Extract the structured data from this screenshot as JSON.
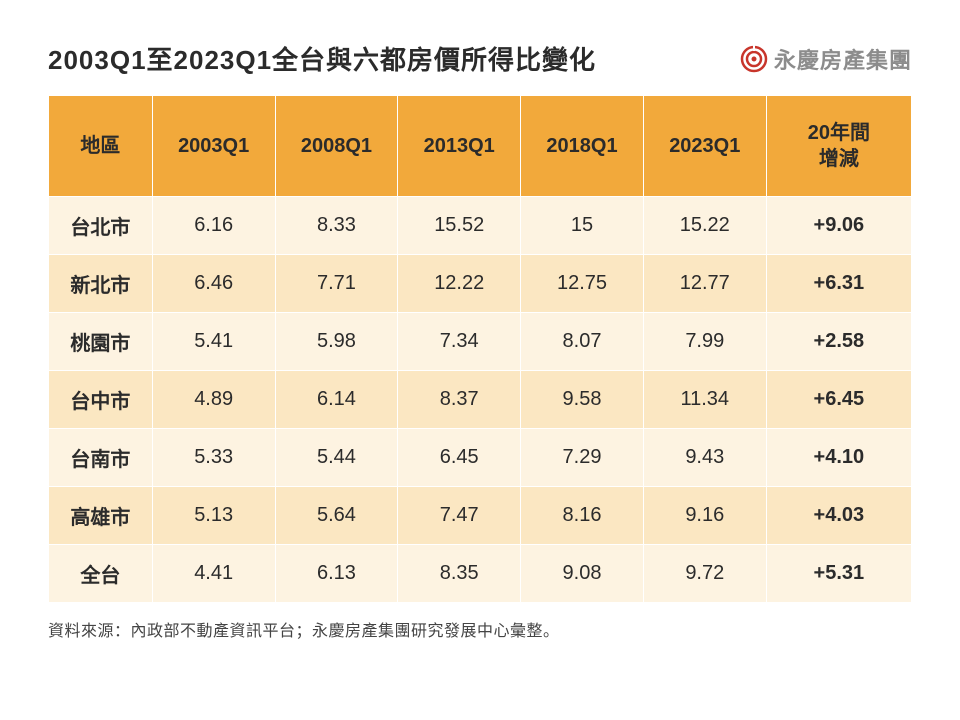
{
  "title": "2003Q1至2023Q1全台與六都房價所得比變化",
  "logo": {
    "text": "永慶房產集團",
    "icon_color": "#c8352b"
  },
  "table": {
    "type": "table",
    "header_bg": "#f2a93b",
    "row_even_bg": "#fdf3e1",
    "row_odd_bg": "#fbe7c2",
    "border_color": "#ffffff",
    "header_fontsize": 20,
    "cell_fontsize": 20,
    "columns": [
      "地區",
      "2003Q1",
      "2008Q1",
      "2013Q1",
      "2018Q1",
      "2023Q1",
      "20年間\n增減"
    ],
    "rows": [
      {
        "label": "台北市",
        "values": [
          "6.16",
          "8.33",
          "15.52",
          "15",
          "15.22"
        ],
        "change": "+9.06"
      },
      {
        "label": "新北市",
        "values": [
          "6.46",
          "7.71",
          "12.22",
          "12.75",
          "12.77"
        ],
        "change": "+6.31"
      },
      {
        "label": "桃園市",
        "values": [
          "5.41",
          "5.98",
          "7.34",
          "8.07",
          "7.99"
        ],
        "change": "+2.58"
      },
      {
        "label": "台中市",
        "values": [
          "4.89",
          "6.14",
          "8.37",
          "9.58",
          "11.34"
        ],
        "change": "+6.45"
      },
      {
        "label": "台南市",
        "values": [
          "5.33",
          "5.44",
          "6.45",
          "7.29",
          "9.43"
        ],
        "change": "+4.10"
      },
      {
        "label": "高雄市",
        "values": [
          "5.13",
          "5.64",
          "7.47",
          "8.16",
          "9.16"
        ],
        "change": "+4.03"
      },
      {
        "label": "全台",
        "values": [
          "4.41",
          "6.13",
          "8.35",
          "9.08",
          "9.72"
        ],
        "change": "+5.31"
      }
    ]
  },
  "source": "資料來源：內政部不動產資訊平台；永慶房產集團研究發展中心彙整。"
}
